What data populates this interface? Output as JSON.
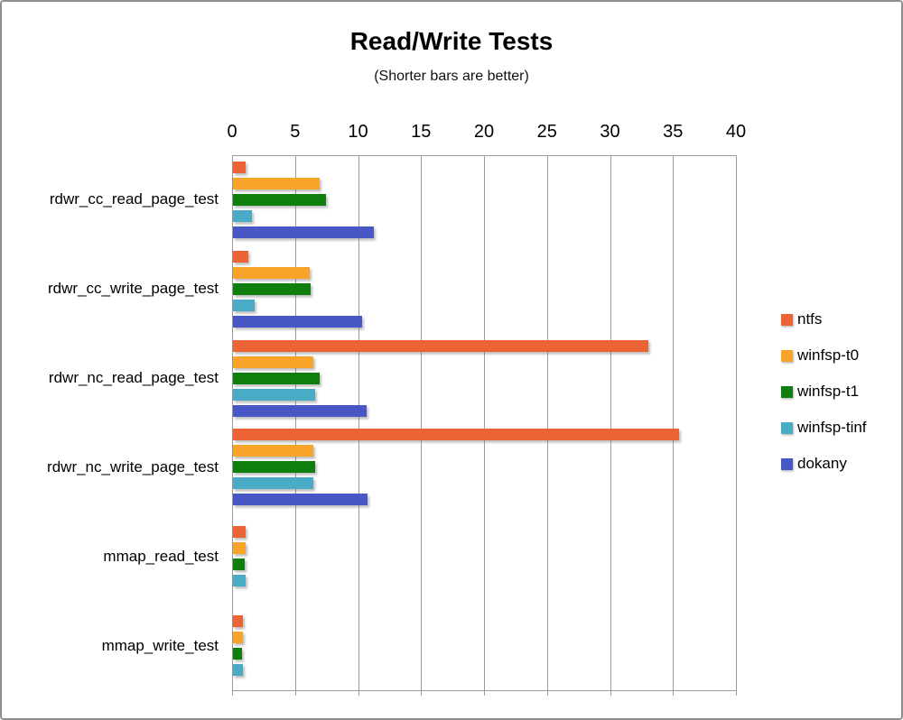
{
  "chart_data": {
    "type": "bar",
    "orientation": "horizontal",
    "title": "Read/Write Tests",
    "subtitle": "(Shorter bars are better)",
    "xlabel": "",
    "ylabel": "",
    "xlim": [
      0,
      40
    ],
    "x_ticks": [
      0,
      5,
      10,
      15,
      20,
      25,
      30,
      35,
      40
    ],
    "grid": true,
    "legend_position": "right",
    "categories": [
      "rdwr_cc_read_page_test",
      "rdwr_cc_write_page_test",
      "rdwr_nc_read_page_test",
      "rdwr_nc_write_page_test",
      "mmap_read_test",
      "mmap_write_test"
    ],
    "series": [
      {
        "name": "ntfs",
        "color": "#ED6434",
        "values": [
          1.0,
          1.2,
          33.0,
          35.5,
          1.0,
          0.8
        ]
      },
      {
        "name": "winfsp-t0",
        "color": "#F8A42B",
        "values": [
          6.9,
          6.1,
          6.4,
          6.4,
          1.0,
          0.8
        ]
      },
      {
        "name": "winfsp-t1",
        "color": "#0E7E0E",
        "values": [
          7.4,
          6.2,
          6.9,
          6.5,
          0.9,
          0.75
        ]
      },
      {
        "name": "winfsp-tinf",
        "color": "#4AABC7",
        "values": [
          1.5,
          1.7,
          6.5,
          6.4,
          1.0,
          0.8
        ]
      },
      {
        "name": "dokany",
        "color": "#4757C6",
        "values": [
          11.2,
          10.3,
          10.6,
          10.7,
          0,
          0
        ]
      }
    ],
    "colors": {
      "grid_line": "#9a9a9a",
      "text": "#000000",
      "frame_border": "#8e8e8e"
    }
  }
}
